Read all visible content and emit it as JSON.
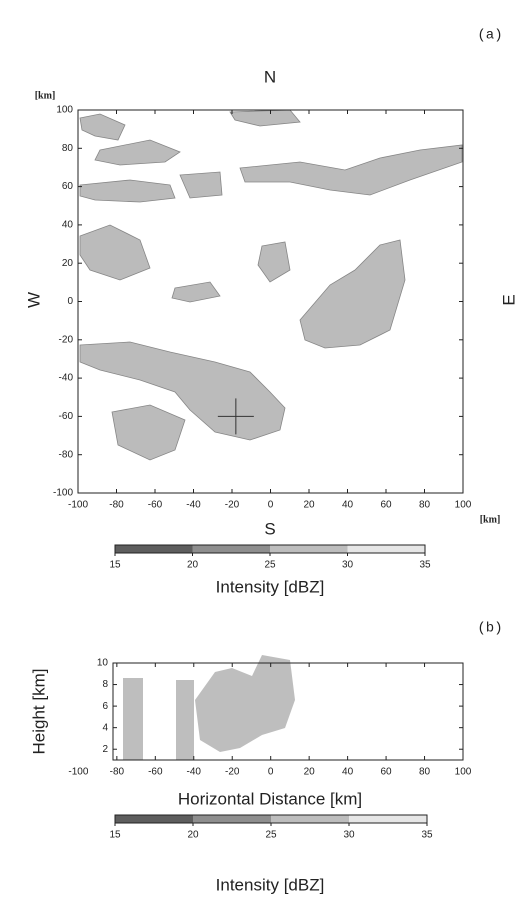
{
  "chart_data": [
    {
      "type": "heatmap",
      "panel_label": "(a)",
      "top_label": "N",
      "bottom_label": "S",
      "left_label": "W",
      "right_label": "E",
      "x_unit": "[km]",
      "y_unit": "[km]",
      "xlim": [
        -100,
        100
      ],
      "ylim": [
        -100,
        100
      ],
      "xticks": [
        -100,
        -80,
        -60,
        -40,
        -20,
        0,
        20,
        40,
        60,
        80,
        100
      ],
      "yticks": [
        -100,
        -80,
        -60,
        -40,
        -20,
        0,
        20,
        40,
        60,
        80,
        100
      ],
      "colorbar": {
        "ticks": [
          15,
          20,
          25,
          30,
          35
        ],
        "colors": [
          "#5e5e5e",
          "#8e8e8e",
          "#bdbdbd",
          "#e6e6e6"
        ],
        "label": "Intensity [dBZ]"
      }
    },
    {
      "type": "heatmap",
      "panel_label": "(b)",
      "xlabel": "Horizontal Distance [km]",
      "ylabel": "Height [km]",
      "xlim": [
        -82,
        100
      ],
      "ylim": [
        1,
        10
      ],
      "xticks": [
        -100,
        -80,
        -60,
        -40,
        -20,
        0,
        20,
        40,
        60,
        80,
        100
      ],
      "yticks": [
        2,
        4,
        6,
        8,
        10
      ],
      "colorbar": {
        "ticks": [
          15,
          20,
          25,
          30,
          35
        ],
        "colors": [
          "#5e5e5e",
          "#8e8e8e",
          "#bdbdbd",
          "#e6e6e6"
        ],
        "label": "Intensity [dBZ]"
      }
    }
  ]
}
